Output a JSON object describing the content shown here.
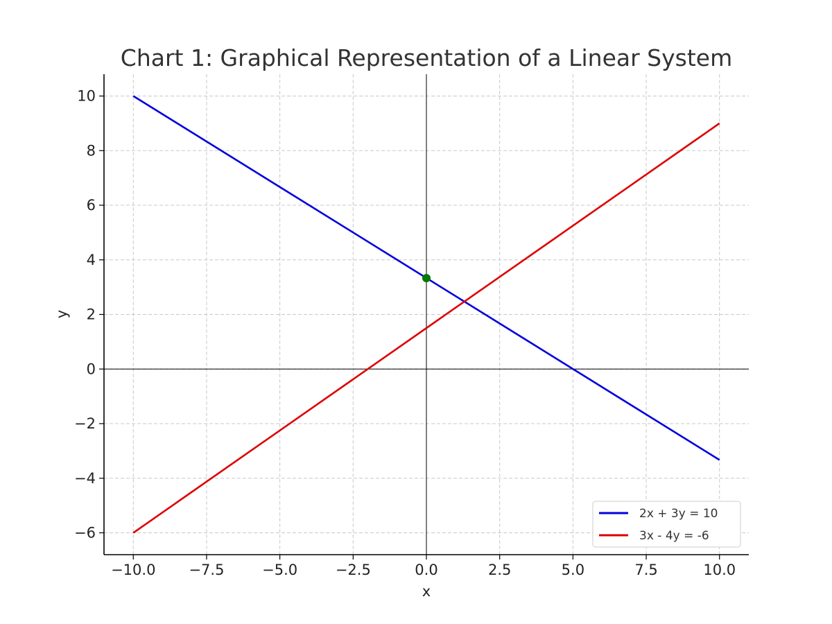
{
  "chart_data": {
    "type": "line",
    "title": "Chart 1: Graphical Representation of a Linear System",
    "xlabel": "x",
    "ylabel": "y",
    "xlim": [
      -11,
      11
    ],
    "ylim": [
      -6.8,
      10.8
    ],
    "xticks": [
      -10.0,
      -7.5,
      -5.0,
      -2.5,
      0.0,
      2.5,
      5.0,
      7.5,
      10.0
    ],
    "xtick_labels": [
      "−10.0",
      "−7.5",
      "−5.0",
      "−2.5",
      "0.0",
      "2.5",
      "5.0",
      "7.5",
      "10.0"
    ],
    "yticks": [
      -6,
      -4,
      -2,
      0,
      2,
      4,
      6,
      8,
      10
    ],
    "ytick_labels": [
      "−6",
      "−4",
      "−2",
      "0",
      "2",
      "4",
      "6",
      "8",
      "10"
    ],
    "grid": true,
    "legend_position": "bottom-right",
    "series": [
      {
        "name": "2x + 3y = 10",
        "color": "#0000dd",
        "x": [
          -10,
          10
        ],
        "y": [
          10,
          -3.33
        ]
      },
      {
        "name": "3x - 4y = -6",
        "color": "#dd0000",
        "x": [
          -10,
          10
        ],
        "y": [
          -6,
          9
        ]
      }
    ],
    "points": [
      {
        "x": 0,
        "y": 3.33,
        "color": "#007a00"
      }
    ],
    "reference_lines": {
      "x0": true,
      "y0": true
    }
  }
}
